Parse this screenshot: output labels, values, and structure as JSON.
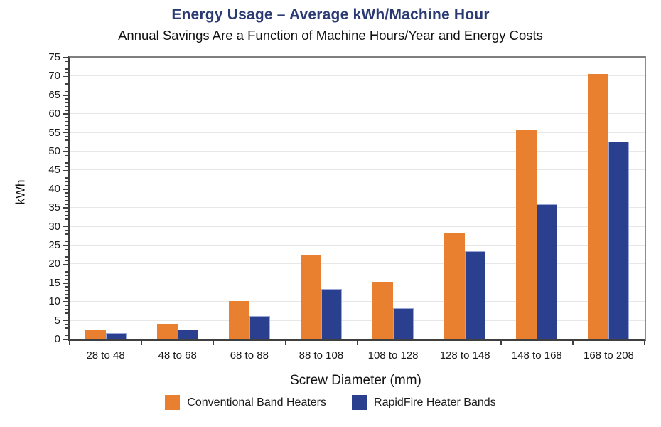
{
  "theme": {
    "title_color": "#2b3a73",
    "text_color": "#1a1a1a",
    "grid_color": "#e7e7e7",
    "axis_color": "#3f3f3f",
    "spine_gray": "#7f7f7f"
  },
  "chart_data": {
    "type": "bar",
    "title": "Energy Usage – Average kWh/Machine Hour",
    "subtitle": "Annual Savings Are a Function of Machine Hours/Year and Energy Costs",
    "xlabel": "Screw Diameter (mm)",
    "ylabel": "kWh",
    "ylim": [
      0,
      75
    ],
    "ytick_step": 5,
    "minor_tick_step": 1,
    "grid": true,
    "legend_position": "bottom",
    "categories": [
      "28 to 48",
      "48 to 68",
      "68 to 88",
      "88 to 108",
      "108 to 128",
      "128 to 148",
      "148 to 168",
      "168 to 208"
    ],
    "series": [
      {
        "name": "Conventional Band Heaters",
        "color": "#e8802f",
        "values": [
          2.5,
          4.1,
          10.3,
          22.6,
          15.4,
          28.4,
          55.7,
          70.6
        ]
      },
      {
        "name": "RapidFire Heater Bands",
        "color": "#2a3f8e",
        "values": [
          1.8,
          2.7,
          6.3,
          13.4,
          8.3,
          23.5,
          36.0,
          52.7
        ]
      }
    ]
  }
}
